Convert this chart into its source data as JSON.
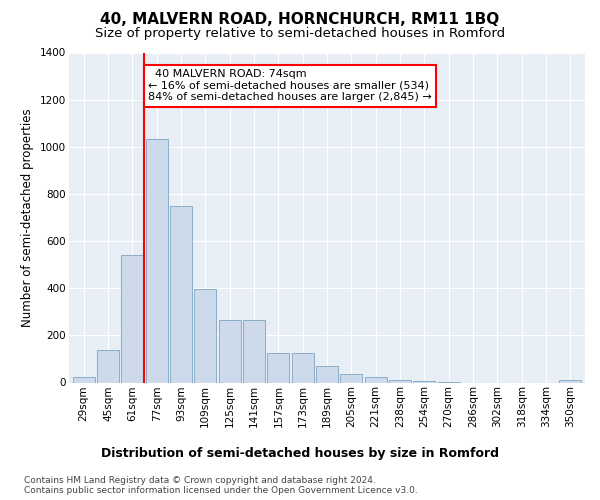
{
  "title": "40, MALVERN ROAD, HORNCHURCH, RM11 1BQ",
  "subtitle": "Size of property relative to semi-detached houses in Romford",
  "xlabel": "Distribution of semi-detached houses by size in Romford",
  "ylabel": "Number of semi-detached properties",
  "categories": [
    "29sqm",
    "45sqm",
    "61sqm",
    "77sqm",
    "93sqm",
    "109sqm",
    "125sqm",
    "141sqm",
    "157sqm",
    "173sqm",
    "189sqm",
    "205sqm",
    "221sqm",
    "238sqm",
    "254sqm",
    "270sqm",
    "286sqm",
    "302sqm",
    "318sqm",
    "334sqm",
    "350sqm"
  ],
  "values": [
    22,
    140,
    540,
    1035,
    748,
    395,
    265,
    265,
    125,
    125,
    70,
    35,
    25,
    10,
    8,
    2,
    0,
    0,
    0,
    0,
    10
  ],
  "bar_color": "#ccdaeb",
  "bar_edge_color": "#8aadc8",
  "marker_label": "40 MALVERN ROAD: 74sqm",
  "pct_smaller": 16,
  "pct_smaller_count": 534,
  "pct_larger": 84,
  "pct_larger_count": 2845,
  "marker_color": "red",
  "ylim": [
    0,
    1400
  ],
  "yticks": [
    0,
    200,
    400,
    600,
    800,
    1000,
    1200,
    1400
  ],
  "footnote1": "Contains HM Land Registry data © Crown copyright and database right 2024.",
  "footnote2": "Contains public sector information licensed under the Open Government Licence v3.0.",
  "plot_bg_color": "#e8eef5",
  "title_fontsize": 11,
  "subtitle_fontsize": 9.5,
  "annotation_fontsize": 8,
  "tick_fontsize": 7.5,
  "ylabel_fontsize": 8.5,
  "xlabel_fontsize": 9
}
